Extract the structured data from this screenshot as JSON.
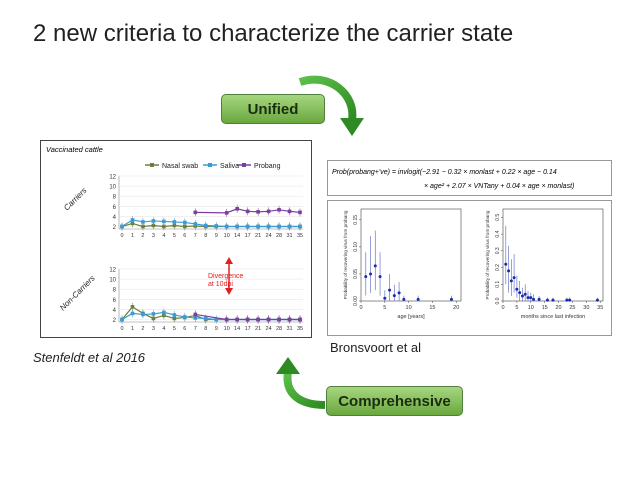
{
  "slide": {
    "title": "2 new criteria to characterize the carrier state",
    "badges": {
      "unified": "Unified",
      "comprehensive": "Comprehensive"
    },
    "credits": {
      "left": "Stenfeldt et al 2016",
      "right": "Bronsvoort et al"
    },
    "colors": {
      "arrow_green": "#3aa02a",
      "badge_fill": "#8cc265",
      "nasal": "#6b7f3e",
      "saliva": "#3a9bd5",
      "probang": "#7b3f9e",
      "divergence": "#e02020",
      "dot_blue": "#1a2bb0"
    }
  },
  "stenfeldt": {
    "title": "Vaccinated cattle",
    "legend": [
      "Nasal swab",
      "Saliva",
      "Probang"
    ],
    "row_labels": {
      "carriers": "Carriers",
      "noncarriers": "Non-Carriers"
    },
    "divergence_note": [
      "Divergence",
      "at 10dpi"
    ]
  },
  "formula": {
    "line1": "Prob(probang+'ve)  =  invlogit(−2.91 − 0.32 × monlast + 0.22 × age − 0.14",
    "line2": "× age² + 2.07 × VNTany + 0.04 × age × monlast)"
  },
  "chart_data": [
    {
      "type": "line",
      "title": "Vaccinated cattle",
      "subtitle": "Carriers",
      "categories": [
        "0",
        "1",
        "2",
        "3",
        "4",
        "5",
        "6",
        "7",
        "8",
        "9",
        "10",
        "14",
        "17",
        "21",
        "24",
        "28",
        "31",
        "35"
      ],
      "series": [
        {
          "name": "Nasal swab",
          "values": [
            2,
            2.6,
            2,
            2.2,
            2,
            2.2,
            2,
            2.1,
            2,
            2,
            2,
            2,
            2,
            2,
            2,
            2,
            2,
            2
          ]
        },
        {
          "name": "Saliva",
          "values": [
            2,
            3.3,
            2.9,
            3.1,
            3.0,
            2.9,
            2.8,
            2.5,
            2.2,
            2.1,
            2,
            2,
            2,
            2,
            2,
            2,
            2,
            2
          ]
        },
        {
          "name": "Probang",
          "values": [
            null,
            null,
            null,
            null,
            null,
            null,
            null,
            4.8,
            null,
            null,
            4.7,
            5.5,
            5.0,
            4.9,
            5.0,
            5.3,
            5.0,
            4.8
          ]
        }
      ],
      "yticks": [
        2,
        4,
        6,
        8,
        10,
        12
      ],
      "ylim": [
        1.5,
        12
      ]
    },
    {
      "type": "line",
      "subtitle": "Non-Carriers",
      "categories": [
        "0",
        "1",
        "2",
        "3",
        "4",
        "5",
        "6",
        "7",
        "8",
        "9",
        "10",
        "14",
        "17",
        "21",
        "24",
        "28",
        "31",
        "35"
      ],
      "series": [
        {
          "name": "Nasal swab",
          "values": [
            2,
            4.5,
            3.2,
            2.2,
            2.8,
            2.2,
            2.4,
            2.8,
            2,
            2,
            2,
            2,
            2,
            2,
            2,
            2,
            2,
            2
          ]
        },
        {
          "name": "Saliva",
          "values": [
            2,
            3.2,
            3.0,
            3.1,
            3.4,
            2.9,
            2.5,
            2.3,
            2.2,
            2.0,
            2,
            2,
            2,
            2,
            2,
            2,
            2,
            2
          ]
        },
        {
          "name": "Probang",
          "values": [
            null,
            null,
            null,
            null,
            null,
            null,
            null,
            3.0,
            null,
            null,
            2.0,
            2,
            2,
            2,
            2,
            2,
            2,
            2
          ]
        }
      ],
      "yticks": [
        2,
        4,
        6,
        8,
        10,
        12
      ],
      "ylim": [
        1.5,
        12
      ]
    },
    {
      "type": "scatter",
      "xlabel": "age [years]",
      "ylabel": "Probability of recovering virus from probang",
      "xticks": [
        0,
        5,
        10,
        15,
        20
      ],
      "xlim": [
        0,
        21
      ],
      "yticks": [
        0.0,
        0.05,
        0.1,
        0.15
      ],
      "ylim": [
        0,
        0.17
      ],
      "points": [
        {
          "x": 1,
          "y": 0.045,
          "lo": 0.01,
          "hi": 0.09
        },
        {
          "x": 2,
          "y": 0.05,
          "lo": 0.015,
          "hi": 0.12
        },
        {
          "x": 3,
          "y": 0.065,
          "lo": 0.02,
          "hi": 0.13
        },
        {
          "x": 4,
          "y": 0.045,
          "lo": 0.01,
          "hi": 0.09
        },
        {
          "x": 5,
          "y": 0.005,
          "lo": 0.0,
          "hi": 0.02
        },
        {
          "x": 6,
          "y": 0.02,
          "lo": 0.0,
          "hi": 0.05
        },
        {
          "x": 7,
          "y": 0.01,
          "lo": 0.0,
          "hi": 0.03
        },
        {
          "x": 8,
          "y": 0.015,
          "lo": 0.0,
          "hi": 0.035
        },
        {
          "x": 9,
          "y": 0.003,
          "lo": 0.0,
          "hi": 0.01
        },
        {
          "x": 12,
          "y": 0.003,
          "lo": 0.0,
          "hi": 0.01
        },
        {
          "x": 19,
          "y": 0.003,
          "lo": 0.0,
          "hi": 0.01
        }
      ]
    },
    {
      "type": "scatter",
      "xlabel": "months since last infection",
      "ylabel": "Probability of recovering virus from probang",
      "xticks": [
        0,
        5,
        10,
        15,
        20,
        25,
        30,
        35
      ],
      "xlim": [
        0,
        36
      ],
      "yticks": [
        0.0,
        0.1,
        0.2,
        0.3,
        0.4,
        0.5
      ],
      "ylim": [
        0,
        0.55
      ],
      "points": [
        {
          "x": 1,
          "y": 0.22,
          "lo": 0.1,
          "hi": 0.45
        },
        {
          "x": 2,
          "y": 0.18,
          "lo": 0.05,
          "hi": 0.33
        },
        {
          "x": 3,
          "y": 0.12,
          "lo": 0.03,
          "hi": 0.25
        },
        {
          "x": 4,
          "y": 0.14,
          "lo": 0.05,
          "hi": 0.28
        },
        {
          "x": 5,
          "y": 0.07,
          "lo": 0.02,
          "hi": 0.15
        },
        {
          "x": 6,
          "y": 0.05,
          "lo": 0.0,
          "hi": 0.12
        },
        {
          "x": 7,
          "y": 0.03,
          "lo": 0.0,
          "hi": 0.08
        },
        {
          "x": 8,
          "y": 0.04,
          "lo": 0.0,
          "hi": 0.1
        },
        {
          "x": 9,
          "y": 0.02,
          "lo": 0.0,
          "hi": 0.06
        },
        {
          "x": 10,
          "y": 0.02,
          "lo": 0.0,
          "hi": 0.05
        },
        {
          "x": 11,
          "y": 0.01,
          "lo": 0.0,
          "hi": 0.04
        },
        {
          "x": 13,
          "y": 0.01,
          "lo": 0.0,
          "hi": 0.03
        },
        {
          "x": 16,
          "y": 0.005,
          "lo": 0.0,
          "hi": 0.02
        },
        {
          "x": 18,
          "y": 0.005,
          "lo": 0.0,
          "hi": 0.02
        },
        {
          "x": 23,
          "y": 0.005,
          "lo": 0.0,
          "hi": 0.02
        },
        {
          "x": 24,
          "y": 0.005,
          "lo": 0.0,
          "hi": 0.02
        },
        {
          "x": 34,
          "y": 0.005,
          "lo": 0.0,
          "hi": 0.02
        }
      ]
    }
  ]
}
